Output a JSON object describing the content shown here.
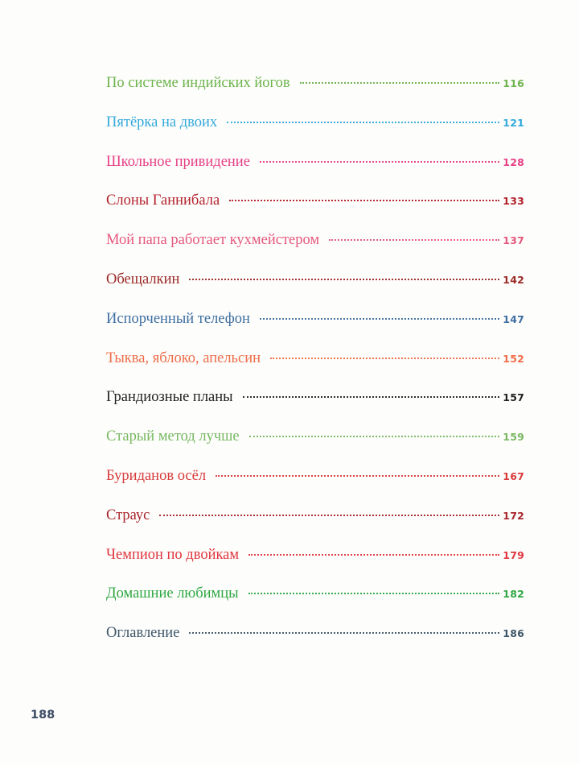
{
  "toc": {
    "entries": [
      {
        "title": "По системе индийских йогов",
        "page": "116",
        "color": "#6cb44b"
      },
      {
        "title": "Пятёрка на двоих",
        "page": "121",
        "color": "#34a9dc"
      },
      {
        "title": "Школьное привидение",
        "page": "128",
        "color": "#e63f84"
      },
      {
        "title": "Слоны Ганнибала",
        "page": "133",
        "color": "#b3222c"
      },
      {
        "title": "Мой папа работает кухмейстером",
        "page": "137",
        "color": "#e5587d"
      },
      {
        "title": "Обещалкин",
        "page": "142",
        "color": "#9b2a26"
      },
      {
        "title": "Испорченный телефон",
        "page": "147",
        "color": "#3f6fa1"
      },
      {
        "title": "Тыква, яблоко, апельсин",
        "page": "152",
        "color": "#ef6d49"
      },
      {
        "title": "Грандиозные планы",
        "page": "157",
        "color": "#222222"
      },
      {
        "title": "Старый метод лучше",
        "page": "159",
        "color": "#79b861"
      },
      {
        "title": "Буриданов осёл",
        "page": "167",
        "color": "#d93b3b"
      },
      {
        "title": "Страус",
        "page": "172",
        "color": "#a8262c"
      },
      {
        "title": "Чемпион по двойкам",
        "page": "179",
        "color": "#e0363e"
      },
      {
        "title": "Домашние любимцы",
        "page": "182",
        "color": "#2fa843"
      },
      {
        "title": "Оглавление",
        "page": "186",
        "color": "#3e5668"
      }
    ]
  },
  "footer": {
    "page_number": "188"
  }
}
